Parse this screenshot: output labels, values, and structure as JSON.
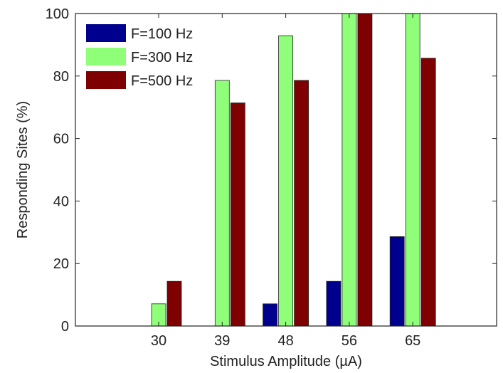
{
  "chart_data": {
    "type": "bar",
    "categories": [
      "30",
      "39",
      "48",
      "56",
      "65"
    ],
    "series": [
      {
        "name": "F=100 Hz",
        "color": "#00008f",
        "values": [
          0,
          0,
          7.1,
          14.3,
          28.6
        ]
      },
      {
        "name": "F=300 Hz",
        "color": "#8fff7a",
        "values": [
          7.1,
          78.6,
          92.9,
          100,
          100
        ]
      },
      {
        "name": "F=500 Hz",
        "color": "#7f0000",
        "values": [
          14.3,
          71.4,
          78.6,
          100,
          85.7
        ]
      }
    ],
    "xlabel": "Stimulus Amplitude (µA)",
    "ylabel": "Responding Sites (%)",
    "ylim": [
      0,
      100
    ],
    "yticks": [
      "0",
      "20",
      "40",
      "60",
      "80",
      "100"
    ],
    "grid": false,
    "legend_position": "top-left"
  }
}
